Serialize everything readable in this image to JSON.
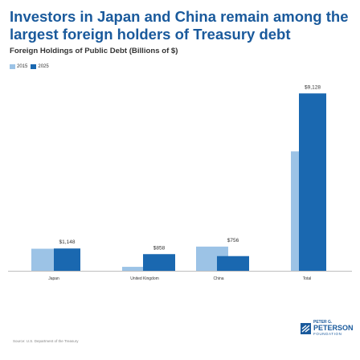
{
  "title": "Investors in Japan and China remain among the largest foreign holders of Treasury debt",
  "subtitle": "Foreign Holdings of Public Debt (Billions of $)",
  "source": "Source: U.S. Department of the Treasury",
  "logo": {
    "line1": "PETER G.",
    "line2": "PETERSON",
    "line3": "FOUNDATION"
  },
  "colors": {
    "title": "#1a5a9c",
    "series_2015": "#9cc3e6",
    "series_2025": "#1a68b0",
    "axis": "#aaaaaa"
  },
  "chart_data": {
    "type": "bar",
    "categories": [
      "Japan",
      "United Kingdom",
      "China",
      "Total"
    ],
    "series": [
      {
        "name": "2015",
        "values": [
          1136,
          205,
          1246,
          6146
        ]
      },
      {
        "name": "2025",
        "values": [
          1148,
          858,
          756,
          9128
        ]
      }
    ],
    "data_labels": [
      "$1,148",
      "$858",
      "$756",
      "$9,128"
    ],
    "legend_position": "top-left",
    "grid": false,
    "ylim": [
      0,
      9800
    ]
  }
}
